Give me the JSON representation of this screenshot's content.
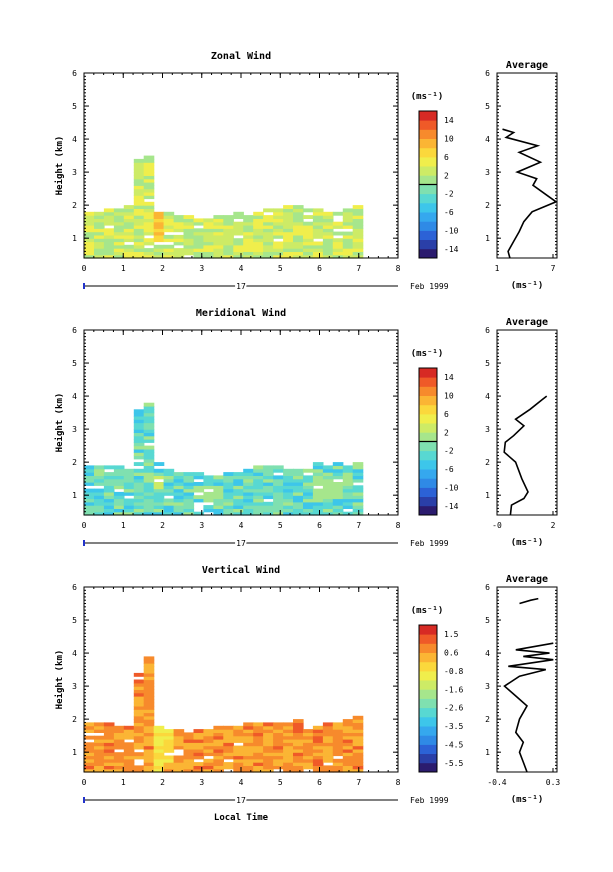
{
  "figure": {
    "xlabel": "Local Time",
    "date_label": "Feb 1999",
    "day_label": "17",
    "average_title": "Average",
    "unit_label": "(ms⁻¹)",
    "palette": [
      "#2b1b6e",
      "#2a3fa8",
      "#2c62d6",
      "#2f8ae6",
      "#35a8ee",
      "#3dc6ea",
      "#58d8d2",
      "#7fe0b0",
      "#a6e68c",
      "#cdeb66",
      "#f0ee4c",
      "#fbd83c",
      "#fbb534",
      "#f78a2c",
      "#ef5a28",
      "#d72a24"
    ]
  },
  "chart_data": [
    {
      "type": "heatmap",
      "title": "Zonal Wind",
      "ylabel": "Height (km)",
      "xlim": [
        0,
        8
      ],
      "ylim": [
        0.4,
        6
      ],
      "x_ticks": [
        0,
        1,
        2,
        3,
        4,
        5,
        6,
        7,
        8
      ],
      "y_ticks": [
        1,
        2,
        3,
        4,
        5,
        6
      ],
      "colorbar": {
        "ticks": [
          "14",
          "10",
          "6",
          "2",
          "-2",
          "-6",
          "-10",
          "-14"
        ],
        "min": -16,
        "max": 16,
        "zero_line": 0
      },
      "average": {
        "x_ticks": [
          "1",
          "7"
        ],
        "xlim": [
          1,
          7.5
        ],
        "profile": [
          [
            2.4,
            0.4
          ],
          [
            2.2,
            0.6
          ],
          [
            2.8,
            0.9
          ],
          [
            3.4,
            1.2
          ],
          [
            3.9,
            1.5
          ],
          [
            4.8,
            1.8
          ],
          [
            7.4,
            2.1
          ],
          [
            6.4,
            2.3
          ],
          [
            4.9,
            2.6
          ],
          [
            5.3,
            2.8
          ],
          [
            3.2,
            3.0
          ],
          [
            5.7,
            3.3
          ],
          [
            3.4,
            3.6
          ],
          [
            5.4,
            3.8
          ],
          [
            2.0,
            4.05
          ],
          [
            2.8,
            4.2
          ],
          [
            1.6,
            4.3
          ]
        ]
      },
      "valid_x": [
        0,
        7.1
      ],
      "valid_top": [
        1.8,
        1.8,
        1.9,
        1.9,
        2.0,
        3.4,
        3.5,
        1.8,
        1.8,
        1.7,
        1.7,
        1.6,
        1.6,
        1.7,
        1.7,
        1.8,
        1.7,
        1.8,
        1.9,
        1.9,
        2.0,
        2.0,
        1.9,
        1.9,
        1.8,
        1.8,
        1.9,
        2.0
      ],
      "features": [
        {
          "cx": 1.95,
          "cy": 2.05,
          "rx": 0.09,
          "ry": 0.45,
          "v": 15
        },
        {
          "cx": 1.95,
          "cy": 1.6,
          "rx": 0.15,
          "ry": 0.7,
          "v": 8
        },
        {
          "cx": 1.9,
          "cy": 2.7,
          "rx": 0.2,
          "ry": 0.7,
          "v": 4
        }
      ],
      "base": 3,
      "spread": 3
    },
    {
      "type": "heatmap",
      "title": "Meridional Wind",
      "ylabel": "Height (km)",
      "xlim": [
        0,
        8
      ],
      "ylim": [
        0.4,
        6
      ],
      "x_ticks": [
        0,
        1,
        2,
        3,
        4,
        5,
        6,
        7,
        8
      ],
      "y_ticks": [
        1,
        2,
        3,
        4,
        5,
        6
      ],
      "colorbar": {
        "ticks": [
          "14",
          "10",
          "6",
          "2",
          "-2",
          "-6",
          "-10",
          "-14"
        ],
        "min": -16,
        "max": 16,
        "zero_line": 0
      },
      "average": {
        "x_ticks": [
          "-0",
          "2"
        ],
        "xlim": [
          -0.3,
          2.6
        ],
        "profile": [
          [
            0.35,
            0.4
          ],
          [
            0.4,
            0.7
          ],
          [
            1.0,
            0.9
          ],
          [
            1.2,
            1.1
          ],
          [
            0.9,
            1.5
          ],
          [
            0.6,
            2.0
          ],
          [
            0.05,
            2.3
          ],
          [
            0.1,
            2.6
          ],
          [
            0.5,
            2.8
          ],
          [
            1.0,
            3.1
          ],
          [
            0.6,
            3.3
          ],
          [
            1.3,
            3.6
          ],
          [
            1.9,
            3.9
          ],
          [
            2.1,
            4.0
          ]
        ]
      },
      "valid_x": [
        0,
        7.1
      ],
      "valid_top": [
        1.9,
        1.9,
        1.9,
        1.9,
        1.8,
        3.6,
        3.8,
        2.0,
        1.8,
        1.7,
        1.7,
        1.7,
        1.6,
        1.6,
        1.7,
        1.7,
        1.8,
        1.9,
        1.9,
        1.9,
        1.8,
        1.8,
        1.9,
        2.0,
        1.9,
        2.0,
        1.9,
        2.0
      ],
      "features": [
        {
          "cx": 1.95,
          "cy": 2.5,
          "rx": 0.12,
          "ry": 0.3,
          "v": -12
        },
        {
          "cx": 1.95,
          "cy": 1.4,
          "rx": 0.15,
          "ry": 0.25,
          "v": 3
        },
        {
          "cx": 3.2,
          "cy": 1.1,
          "rx": 0.4,
          "ry": 0.25,
          "v": 1
        },
        {
          "cx": 6.2,
          "cy": 1.2,
          "rx": 0.5,
          "ry": 0.3,
          "v": 1
        }
      ],
      "base": -2,
      "spread": 3
    },
    {
      "type": "heatmap",
      "title": "Vertical Wind",
      "ylabel": "Height (km)",
      "xlim": [
        0,
        8
      ],
      "ylim": [
        0.4,
        6
      ],
      "x_ticks": [
        0,
        1,
        2,
        3,
        4,
        5,
        6,
        7,
        8
      ],
      "y_ticks": [
        1,
        2,
        3,
        4,
        5,
        6
      ],
      "colorbar": {
        "ticks": [
          "1.5",
          "0.6",
          "-0.8",
          "-1.6",
          "-2.6",
          "-3.5",
          "-4.5",
          "-5.5"
        ],
        "min": -6,
        "max": 2,
        "zero_line": null
      },
      "average": {
        "x_ticks": [
          "-0.4",
          "0.3"
        ],
        "xlim": [
          -0.45,
          0.35
        ],
        "profile": [
          [
            -0.05,
            0.4
          ],
          [
            -0.1,
            0.7
          ],
          [
            -0.15,
            1.0
          ],
          [
            -0.1,
            1.3
          ],
          [
            -0.2,
            1.6
          ],
          [
            -0.15,
            2.0
          ],
          [
            -0.05,
            2.4
          ],
          [
            -0.2,
            2.7
          ],
          [
            -0.35,
            3.0
          ],
          [
            -0.15,
            3.3
          ],
          [
            0.2,
            3.5
          ],
          [
            -0.3,
            3.6
          ],
          [
            0.3,
            3.8
          ],
          [
            -0.1,
            3.9
          ],
          [
            0.25,
            4.0
          ],
          [
            -0.2,
            4.1
          ],
          [
            0.3,
            4.3
          ]
        ]
      },
      "average_extra": [
        [
          -0.15,
          5.5
        ],
        [
          0.0,
          5.6
        ],
        [
          0.1,
          5.65
        ]
      ],
      "valid_x": [
        0,
        7.1
      ],
      "valid_top": [
        1.9,
        1.9,
        1.9,
        1.8,
        1.8,
        3.4,
        3.9,
        1.8,
        1.7,
        1.7,
        1.6,
        1.7,
        1.7,
        1.8,
        1.8,
        1.8,
        1.9,
        1.9,
        1.9,
        1.9,
        1.9,
        2.0,
        1.8,
        1.8,
        1.9,
        1.9,
        2.0,
        2.1
      ],
      "features": [
        {
          "cx": 2.05,
          "cy": 1.2,
          "rx": 0.07,
          "ry": 1.5,
          "v": -4.5
        },
        {
          "cx": 2.0,
          "cy": 2.8,
          "rx": 0.16,
          "ry": 0.8,
          "v": -1.8
        },
        {
          "cx": 2.0,
          "cy": 2.0,
          "rx": 0.22,
          "ry": 1.8,
          "v": -0.5
        }
      ],
      "base": 0.6,
      "spread": 0.5
    }
  ]
}
